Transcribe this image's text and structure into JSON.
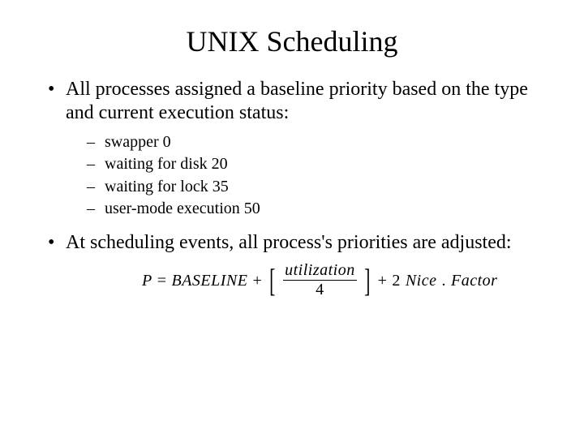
{
  "title": "UNIX Scheduling",
  "bullets": {
    "b1": "All processes assigned a baseline priority based on the type and current execution status:",
    "sub": {
      "s1": "swapper  0",
      "s2": "waiting for disk 20",
      "s3": "waiting for lock 35",
      "s4": "user-mode execution     50"
    },
    "b2": "At scheduling events, all process's priorities are adjusted:"
  },
  "formula": {
    "P": "P",
    "eq1": "=",
    "baseline": "BASELINE",
    "plus1": "+",
    "lbracket": "[",
    "numerator": "utilization",
    "denominator": "4",
    "rbracket": "]",
    "plus2": "+",
    "two": "2",
    "nice": "Nice",
    "dot": ".",
    "factor": "Factor"
  },
  "style": {
    "bg": "#ffffff",
    "text": "#000000",
    "title_fontsize": 36,
    "body_fontsize": 24,
    "sub_fontsize": 20,
    "formula_fontsize": 20,
    "font_family": "Times New Roman"
  }
}
